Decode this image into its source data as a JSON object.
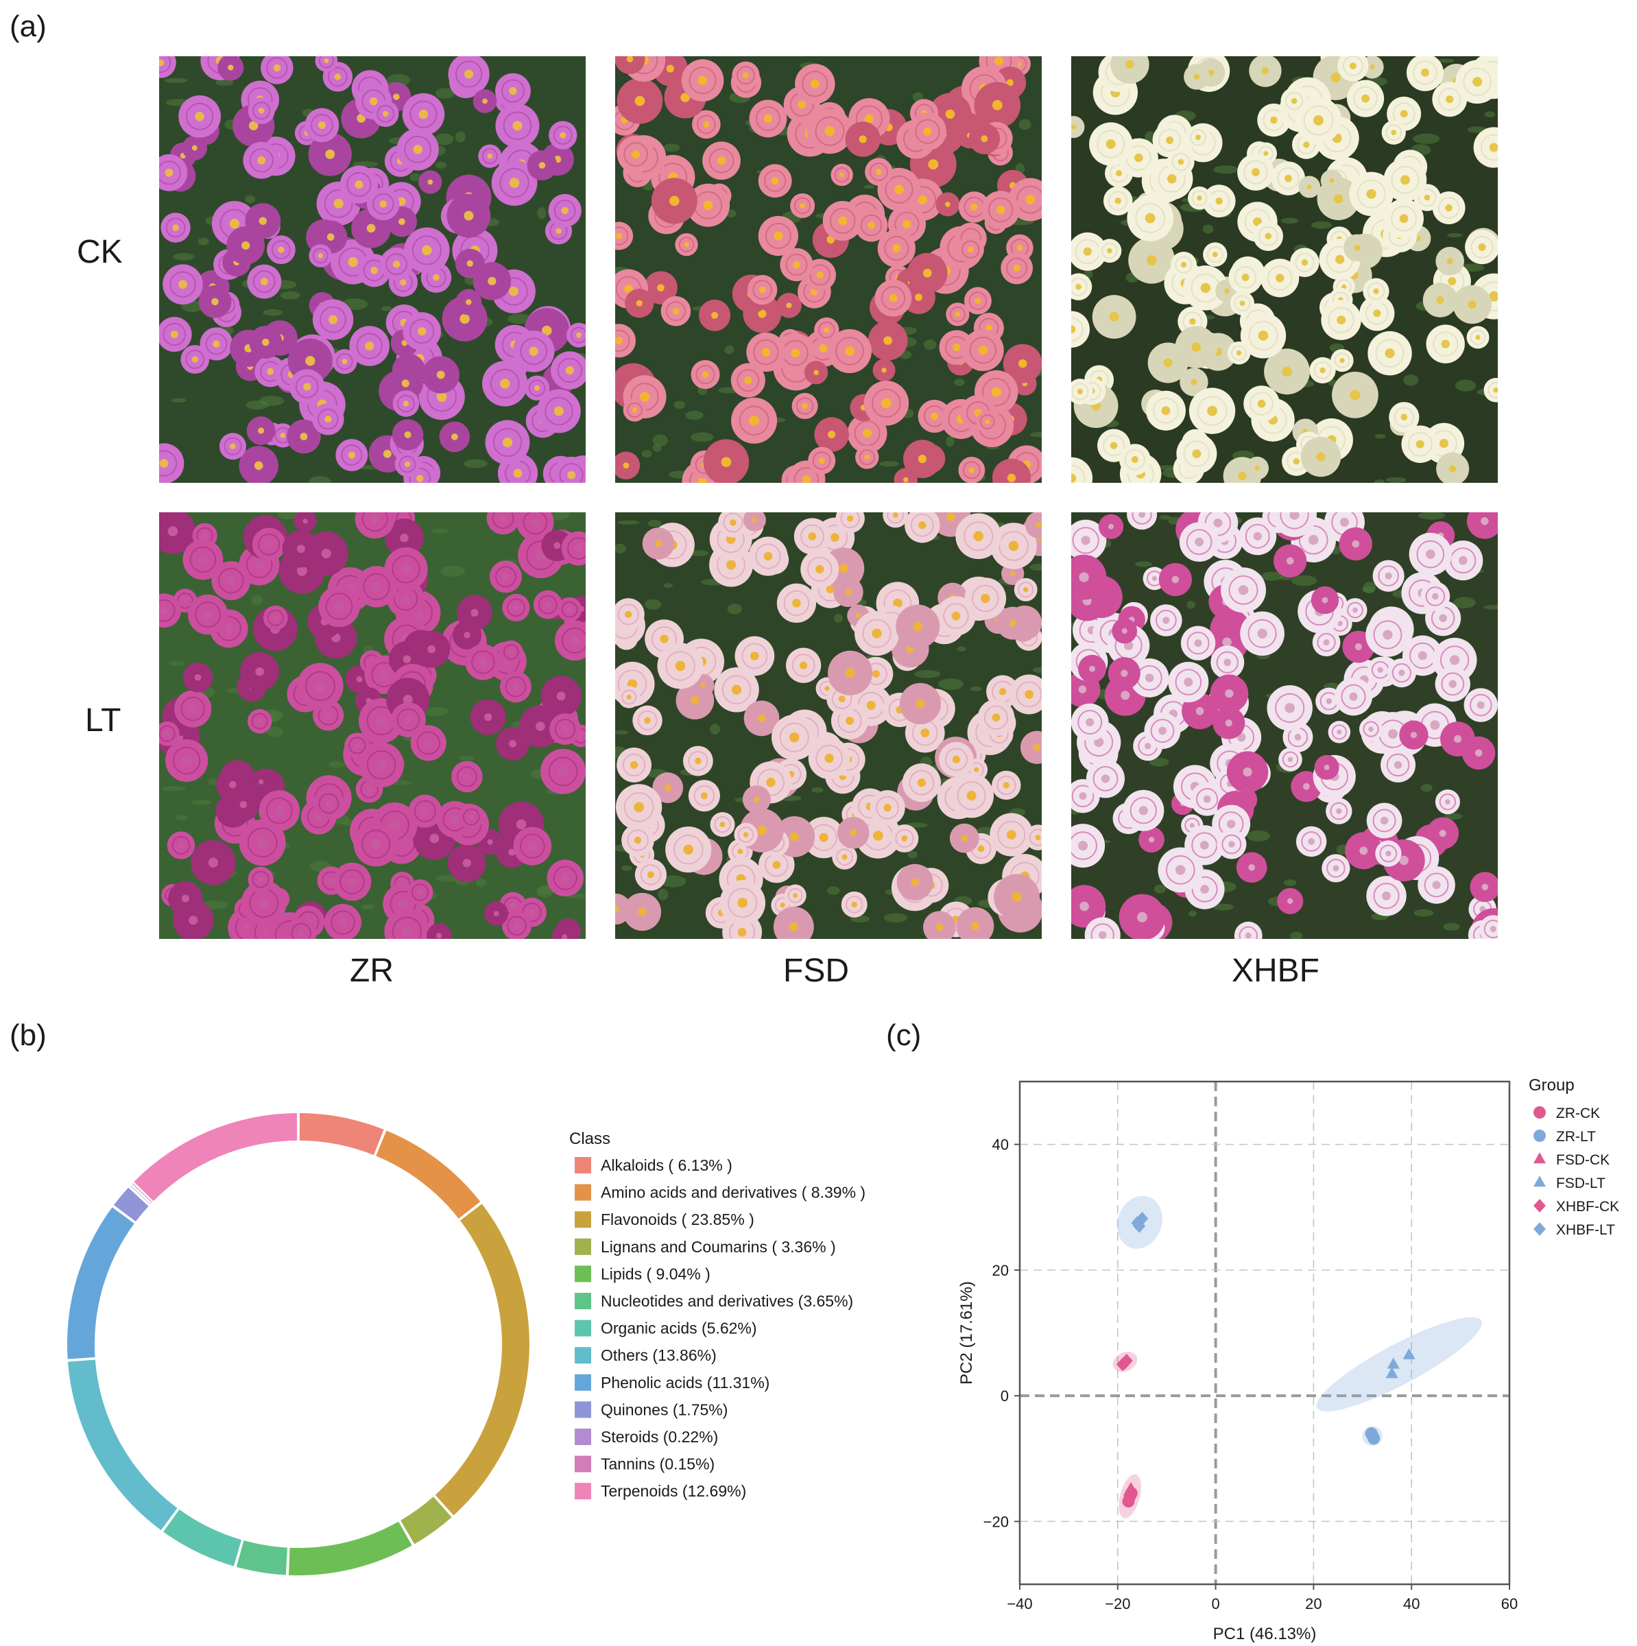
{
  "panel_labels": {
    "a": "(a)",
    "b": "(b)",
    "c": "(c)"
  },
  "photo_grid": {
    "row_labels": [
      "CK",
      "LT"
    ],
    "col_labels": [
      "ZR",
      "FSD",
      "XHBF"
    ],
    "photos": [
      {
        "name": "ZR-CK",
        "bg": "#2f4a2a",
        "petal": "#cf6fcf",
        "petal_dark": "#a9459f",
        "center": "#e9b84a"
      },
      {
        "name": "FSD-CK",
        "bg": "#2d4528",
        "petal": "#e8899f",
        "petal_dark": "#c75772",
        "center": "#f2b62e"
      },
      {
        "name": "XHBF-CK",
        "bg": "#2b3a22",
        "petal": "#f4f2dc",
        "petal_dark": "#d8d6b8",
        "center": "#e6c54a"
      },
      {
        "name": "ZR-LT",
        "bg": "#3b6233",
        "petal": "#cc4f9f",
        "petal_dark": "#9e2f78",
        "center": "#c45a9c"
      },
      {
        "name": "FSD-LT",
        "bg": "#2f4527",
        "petal": "#efd2d8",
        "petal_dark": "#d99ab0",
        "center": "#eeb33a"
      },
      {
        "name": "XHBF-LT",
        "bg": "#2f4027",
        "petal": "#f1e4ee",
        "petal_dark": "#cf4f9a",
        "center": "#d9a6c4"
      }
    ]
  },
  "chart_data": [
    {
      "type": "pie",
      "legend_title": "Class",
      "legend_position": "right",
      "slices": [
        {
          "label": "Alkaloids ( 6.13% )",
          "value": 6.13,
          "color": "#ee8577"
        },
        {
          "label": "Amino acids and derivatives ( 8.39% )",
          "value": 8.39,
          "color": "#e39247"
        },
        {
          "label": "Flavonoids ( 23.85% )",
          "value": 23.85,
          "color": "#c9a23d"
        },
        {
          "label": "Lignans and Coumarins ( 3.36% )",
          "value": 3.36,
          "color": "#9fb24c"
        },
        {
          "label": "Lipids ( 9.04% )",
          "value": 9.04,
          "color": "#6dbf55"
        },
        {
          "label": "Nucleotides and derivatives  (3.65%)",
          "value": 3.65,
          "color": "#5fc48a"
        },
        {
          "label": "Organic acids  (5.62%)",
          "value": 5.62,
          "color": "#5dc5ae"
        },
        {
          "label": "Others  (13.86%)",
          "value": 13.86,
          "color": "#62bccb"
        },
        {
          "label": "Phenolic acids  (11.31%)",
          "value": 11.31,
          "color": "#65a6da"
        },
        {
          "label": "Quinones  (1.75%)",
          "value": 1.75,
          "color": "#8f95d6"
        },
        {
          "label": "Steroids  (0.22%)",
          "value": 0.22,
          "color": "#b48ad0"
        },
        {
          "label": "Tannins  (0.15%)",
          "value": 0.15,
          "color": "#d27cb8"
        },
        {
          "label": "Terpenoids  (12.69%)",
          "value": 12.69,
          "color": "#ee84b8"
        }
      ]
    },
    {
      "type": "scatter",
      "xlabel": "PC1  (46.13%)",
      "ylabel": "PC2  (17.61%)",
      "xlim": [
        -40,
        60
      ],
      "ylim": [
        -30,
        50
      ],
      "xticks": [
        -40,
        -20,
        0,
        20,
        40,
        60
      ],
      "yticks": [
        -20,
        0,
        20,
        40
      ],
      "grid": true,
      "legend_title": "Group",
      "legend_position": "top-right",
      "series": [
        {
          "name": "ZR-CK",
          "shape": "circle",
          "color": "#e0588f",
          "points": [
            [
              -17.5,
              -16
            ],
            [
              -17.8,
              -16.8
            ],
            [
              -17.2,
              -15.5
            ]
          ]
        },
        {
          "name": "ZR-LT",
          "shape": "circle",
          "color": "#7fa9db",
          "points": [
            [
              32,
              -6.3
            ],
            [
              32.3,
              -6.8
            ],
            [
              31.8,
              -6
            ]
          ]
        },
        {
          "name": "FSD-CK",
          "shape": "triangle",
          "color": "#e0588f",
          "points": [
            [
              -17.3,
              -14.8
            ],
            [
              -17.6,
              -15.2
            ]
          ]
        },
        {
          "name": "FSD-LT",
          "shape": "triangle",
          "color": "#7fa9db",
          "points": [
            [
              36,
              3.5
            ],
            [
              36.3,
              5
            ],
            [
              39.5,
              6.5
            ]
          ]
        },
        {
          "name": "XHBF-CK",
          "shape": "diamond",
          "color": "#e0588f",
          "points": [
            [
              -19,
              5
            ],
            [
              -18.2,
              5.6
            ],
            [
              -18.6,
              5.2
            ]
          ]
        },
        {
          "name": "XHBF-LT",
          "shape": "diamond",
          "color": "#7fa9db",
          "points": [
            [
              -16,
              27.5
            ],
            [
              -15,
              28.2
            ],
            [
              -15.6,
              27
            ]
          ]
        }
      ],
      "ellipses": [
        {
          "group": "ZR-CK",
          "cx": -17.5,
          "cy": -16,
          "rx": 2.0,
          "ry": 3.6,
          "angle": 75,
          "color": "#e0588f"
        },
        {
          "group": "ZR-LT",
          "cx": 32,
          "cy": -6.4,
          "rx": 2.0,
          "ry": 1.6,
          "angle": 0,
          "color": "#7fa9db"
        },
        {
          "group": "XHBF-CK",
          "cx": -18.5,
          "cy": 5.4,
          "rx": 2.6,
          "ry": 1.5,
          "angle": 25,
          "color": "#e0588f"
        },
        {
          "group": "XHBF-LT",
          "cx": -15.5,
          "cy": 27.6,
          "rx": 5.5,
          "ry": 3.5,
          "angle": 70,
          "color": "#7fa9db"
        },
        {
          "group": "FSD-LT",
          "cx": 37.5,
          "cy": 5,
          "rx": 19,
          "ry": 3.2,
          "angle": 28,
          "color": "#7fa9db"
        }
      ]
    }
  ]
}
